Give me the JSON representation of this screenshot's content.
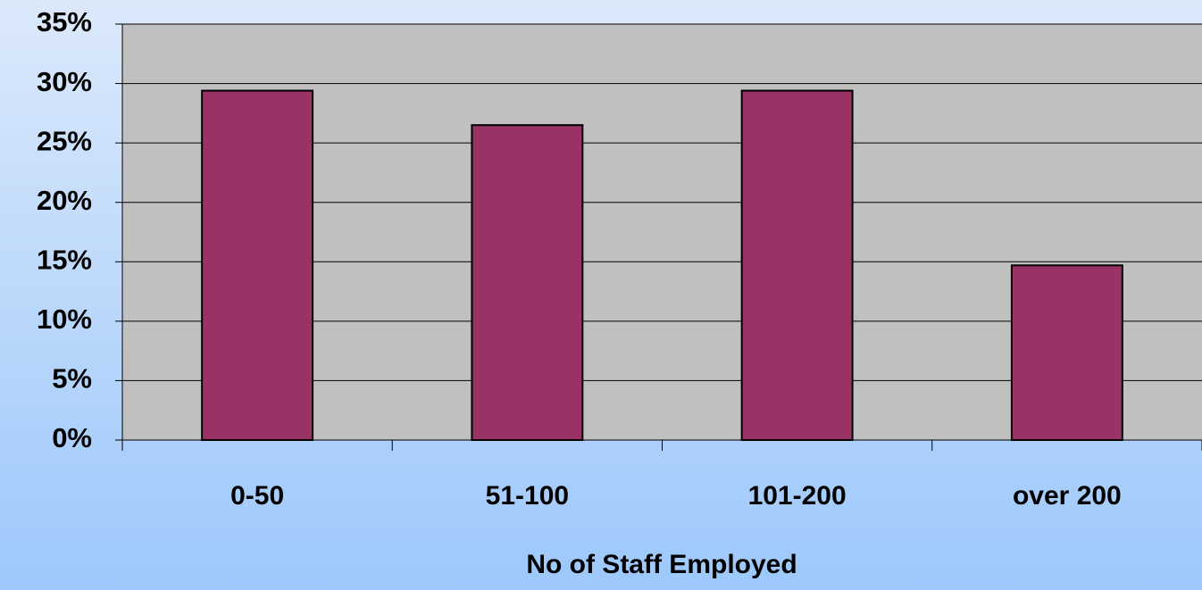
{
  "chart_data": {
    "type": "bar",
    "x_label": "No of Staff Employed",
    "categories": [
      "0-50",
      "51-100",
      "101-200",
      "over 200"
    ],
    "values": [
      29.4,
      26.5,
      29.4,
      14.7
    ],
    "color": "#993366",
    "ylim": [
      0,
      35
    ],
    "yticks": [
      {
        "value": 0,
        "label": "0%"
      },
      {
        "value": 5,
        "label": "5%"
      },
      {
        "value": 10,
        "label": "10%"
      },
      {
        "value": 15,
        "label": "15%"
      },
      {
        "value": 20,
        "label": "20%"
      },
      {
        "value": 25,
        "label": "25%"
      },
      {
        "value": 30,
        "label": "30%"
      },
      {
        "value": 35,
        "label": "35%"
      }
    ],
    "grid": true
  }
}
